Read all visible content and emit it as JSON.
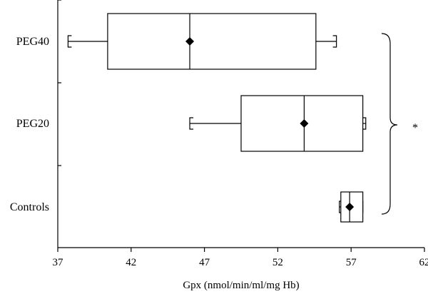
{
  "chart_data": {
    "type": "box",
    "xlabel": "Gpx (nmol/min/ml/mg Hb)",
    "ylabel": "",
    "xlim": [
      37,
      62
    ],
    "x_ticks": [
      37,
      42,
      47,
      52,
      57,
      62
    ],
    "x_tick_labels": [
      "37",
      "42",
      "47",
      "52",
      "57",
      "62"
    ],
    "grid": false,
    "orientation": "horizontal",
    "groups": [
      {
        "label": "PEG40",
        "min": 37.7,
        "q1": 40.4,
        "median": 46.0,
        "mean": 46.0,
        "q3": 54.6,
        "max": 56.0
      },
      {
        "label": "PEG20",
        "min": 46.0,
        "q1": 49.5,
        "median": 53.8,
        "mean": 53.8,
        "q3": 57.8,
        "max": 58.0
      },
      {
        "label": "Controls",
        "min": 56.2,
        "q1": 56.3,
        "median": 56.9,
        "mean": 56.9,
        "q3": 57.8,
        "max": 57.8
      }
    ],
    "annotation": {
      "text": "*",
      "spans": [
        "PEG40",
        "Controls"
      ]
    }
  }
}
